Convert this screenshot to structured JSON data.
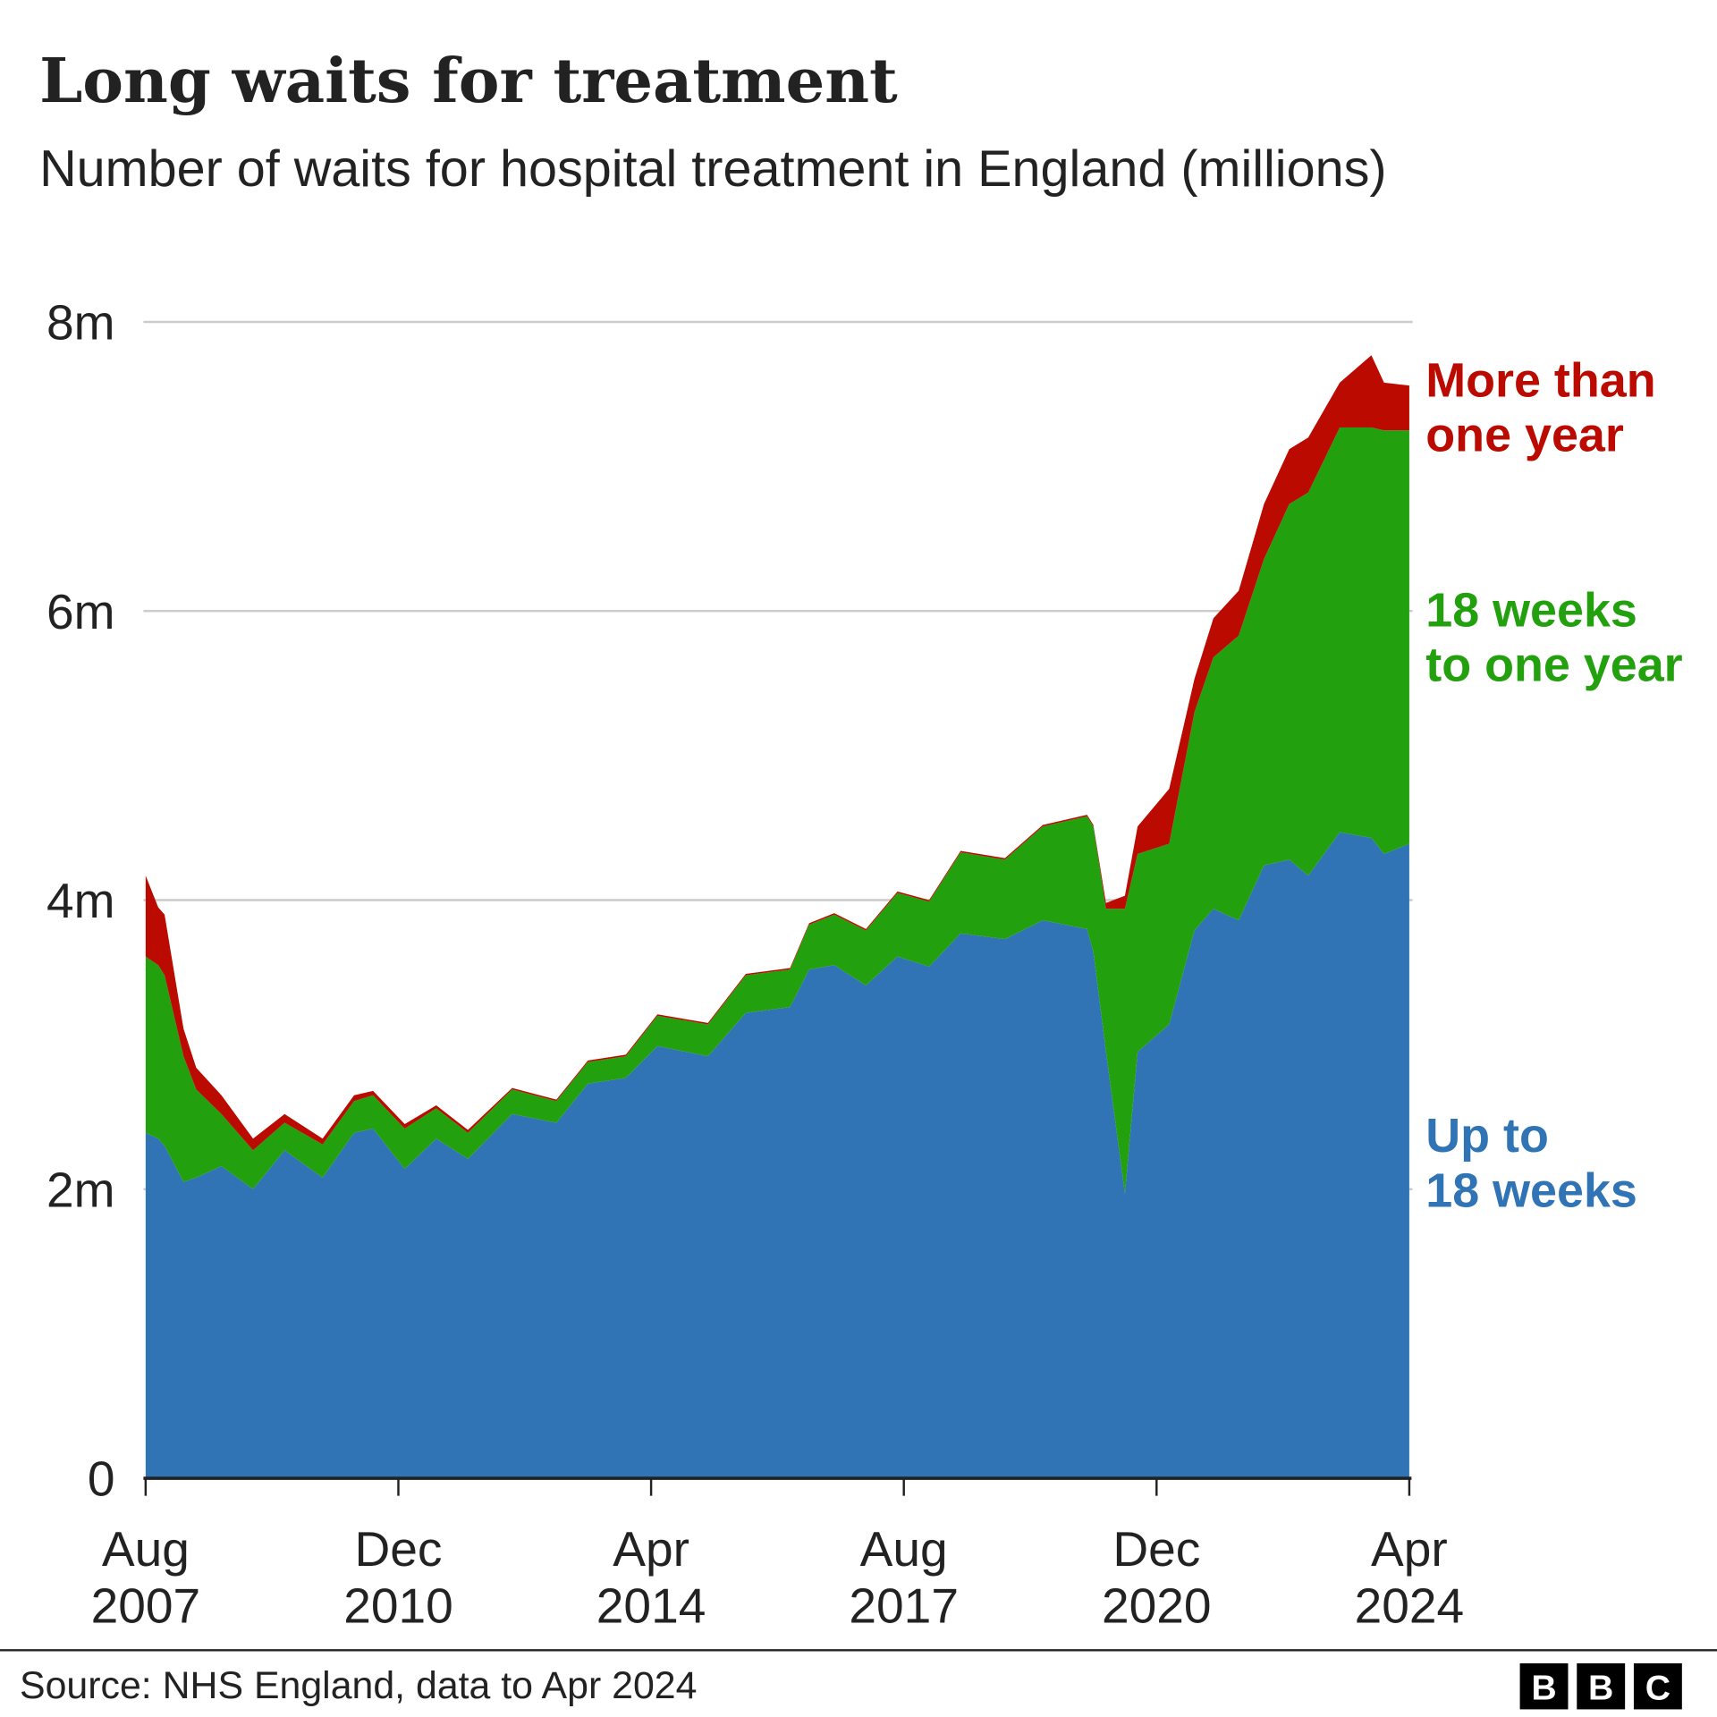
{
  "chart_data": {
    "type": "area",
    "stacked": true,
    "title": "Long waits for treatment",
    "subtitle": "Number of waits for hospital treatment in England (millions)",
    "xlabel": "",
    "ylabel": "",
    "ylim": [
      0,
      8
    ],
    "y_ticks": [
      "0",
      "2m",
      "4m",
      "6m",
      "8m"
    ],
    "y_tick_values": [
      0,
      2,
      4,
      6,
      8
    ],
    "x_ticks": [
      {
        "date": "2007-08",
        "month": "Aug",
        "year": "2007"
      },
      {
        "date": "2010-12",
        "month": "Dec",
        "year": "2010"
      },
      {
        "date": "2014-04",
        "month": "Apr",
        "year": "2014"
      },
      {
        "date": "2017-08",
        "month": "Aug",
        "year": "2017"
      },
      {
        "date": "2020-12",
        "month": "Dec",
        "year": "2020"
      },
      {
        "date": "2024-04",
        "month": "Apr",
        "year": "2024"
      }
    ],
    "grid": true,
    "x": [
      "2007-08",
      "2007-10",
      "2007-11",
      "2008-02",
      "2008-04",
      "2008-08",
      "2009-01",
      "2009-06",
      "2009-12",
      "2010-05",
      "2010-08",
      "2011-01",
      "2011-06",
      "2011-11",
      "2012-06",
      "2013-01",
      "2013-06",
      "2013-12",
      "2014-05",
      "2015-01",
      "2015-07",
      "2016-02",
      "2016-05",
      "2016-09",
      "2017-02",
      "2017-07",
      "2017-12",
      "2018-05",
      "2018-12",
      "2019-06",
      "2020-01",
      "2020-02",
      "2020-04",
      "2020-07",
      "2020-09",
      "2021-02",
      "2021-06",
      "2021-09",
      "2022-01",
      "2022-05",
      "2022-09",
      "2022-12",
      "2023-05",
      "2023-10",
      "2023-12",
      "2024-04"
    ],
    "series": [
      {
        "name": "Up to 18 weeks",
        "label_lines": [
          "Up to",
          "18 weeks"
        ],
        "color": "#3174b5",
        "values": [
          2.39,
          2.35,
          2.3,
          2.05,
          2.08,
          2.16,
          2.0,
          2.27,
          2.08,
          2.39,
          2.42,
          2.14,
          2.35,
          2.21,
          2.52,
          2.46,
          2.73,
          2.77,
          2.99,
          2.92,
          3.22,
          3.26,
          3.52,
          3.55,
          3.41,
          3.61,
          3.54,
          3.77,
          3.73,
          3.86,
          3.8,
          3.64,
          2.95,
          1.97,
          2.95,
          3.14,
          3.79,
          3.94,
          3.86,
          4.24,
          4.28,
          4.17,
          4.47,
          4.43,
          4.32,
          4.39
        ]
      },
      {
        "name": "18 weeks to one year",
        "label_lines": [
          "18 weeks",
          "to one year"
        ],
        "color": "#23a00e",
        "values": [
          1.22,
          1.2,
          1.18,
          0.87,
          0.61,
          0.36,
          0.27,
          0.19,
          0.23,
          0.22,
          0.23,
          0.28,
          0.21,
          0.18,
          0.17,
          0.15,
          0.15,
          0.15,
          0.21,
          0.22,
          0.26,
          0.26,
          0.31,
          0.35,
          0.38,
          0.44,
          0.45,
          0.56,
          0.55,
          0.65,
          0.78,
          0.87,
          0.99,
          1.97,
          1.37,
          1.25,
          1.51,
          1.74,
          1.97,
          2.12,
          2.46,
          2.65,
          2.8,
          2.84,
          2.93,
          2.86
        ]
      },
      {
        "name": "More than one year",
        "label_lines": [
          "More than",
          "one year"
        ],
        "color": "#bb0a00",
        "values": [
          0.56,
          0.4,
          0.42,
          0.19,
          0.15,
          0.13,
          0.08,
          0.06,
          0.04,
          0.04,
          0.03,
          0.03,
          0.02,
          0.02,
          0.01,
          0.01,
          0.01,
          0.01,
          0.01,
          0.01,
          0.01,
          0.01,
          0.01,
          0.01,
          0.01,
          0.01,
          0.01,
          0.01,
          0.01,
          0.01,
          0.01,
          0.01,
          0.04,
          0.09,
          0.19,
          0.38,
          0.23,
          0.27,
          0.31,
          0.38,
          0.38,
          0.38,
          0.31,
          0.5,
          0.33,
          0.31
        ]
      }
    ]
  },
  "footer": {
    "source": "Source: NHS England, data to Apr 2024",
    "logo_letters": [
      "B",
      "B",
      "C"
    ]
  }
}
